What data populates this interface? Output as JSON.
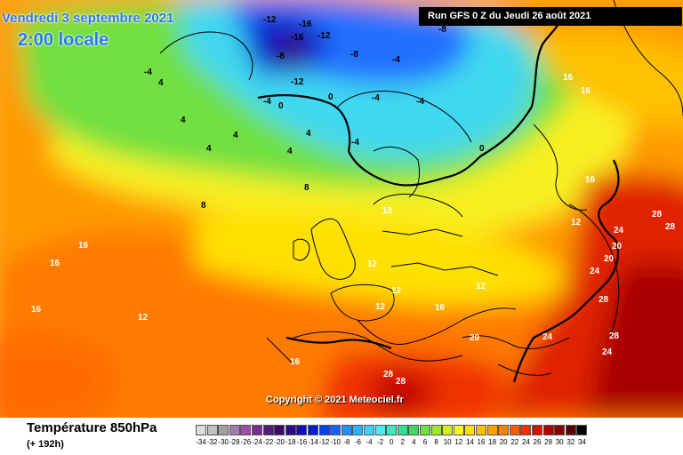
{
  "header": {
    "date_label": "Vendredi 3 septembre 2021",
    "time_label": "2:00 locale",
    "run_label": "Run GFS 0 Z du Jeudi 26 août 2021",
    "copyright": "Copyright © 2021 Meteociel.fr"
  },
  "footer": {
    "title": "Température 850hPa",
    "subtitle": "(+ 192h)"
  },
  "legend": {
    "values": [
      "-34",
      "-32",
      "-30",
      "-28",
      "-26",
      "-24",
      "-22",
      "-20",
      "-18",
      "-16",
      "-14",
      "-12",
      "-10",
      "-8",
      "-6",
      "-4",
      "-2",
      "0",
      "2",
      "4",
      "6",
      "8",
      "10",
      "12",
      "14",
      "16",
      "18",
      "20",
      "22",
      "24",
      "26",
      "28",
      "30",
      "32",
      "34"
    ],
    "colors": [
      "#dcdcdc",
      "#c0c0c0",
      "#a0a0a0",
      "#a07cb0",
      "#9a4fa8",
      "#7a2c92",
      "#5a187a",
      "#3c0a6a",
      "#2a0a8a",
      "#1010b0",
      "#0020d0",
      "#0040f0",
      "#1066ff",
      "#2090ff",
      "#30b0ff",
      "#40d0ff",
      "#50e8f0",
      "#40e8c0",
      "#30e090",
      "#40d860",
      "#70e040",
      "#a0e830",
      "#d0f020",
      "#f8f820",
      "#ffe000",
      "#ffc000",
      "#ffa000",
      "#ff8000",
      "#ff5a00",
      "#f03000",
      "#d81000",
      "#b00000",
      "#880000",
      "#5c0000",
      "#000000"
    ]
  },
  "map_labels": [
    {
      "text": "-16",
      "color": "#000000"
    },
    {
      "text": "-12",
      "color": "#000000"
    },
    {
      "text": "-8",
      "color": "#000000"
    },
    {
      "text": "-4",
      "color": "#000000"
    },
    {
      "text": "0",
      "color": "#000000"
    },
    {
      "text": "4",
      "color": "#000000"
    },
    {
      "text": "8",
      "color": "#000000"
    },
    {
      "text": "12",
      "color": "#ffffff"
    },
    {
      "text": "16",
      "color": "#ffffff"
    },
    {
      "text": "20",
      "color": "#ffffff"
    },
    {
      "text": "24",
      "color": "#ffffff"
    },
    {
      "text": "28",
      "color": "#ffffff"
    }
  ]
}
